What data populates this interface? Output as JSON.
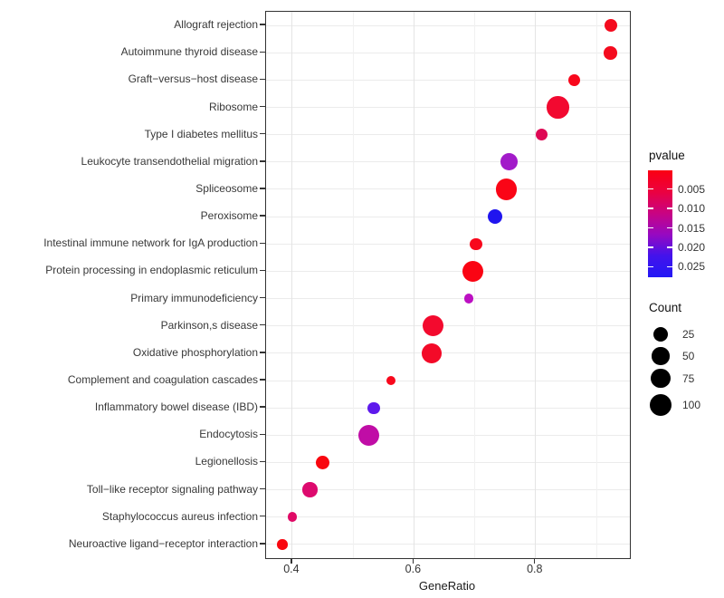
{
  "chart_data": {
    "type": "scatter",
    "variant": "enrichment-dotplot",
    "title": "",
    "xlabel": "GeneRatio",
    "ylabel": "",
    "grid": true,
    "x_axis": {
      "tick_labels": [
        "0.4",
        "0.6",
        "0.8"
      ],
      "tick_values": [
        0.4,
        0.6,
        0.8
      ],
      "minor_gridlines": [
        0.5,
        0.7,
        0.9
      ],
      "xlim": [
        0.357,
        0.955
      ]
    },
    "points": [
      {
        "pathway": "Allograft rejection",
        "gene_ratio": 0.924,
        "count": 17,
        "color": "#F40B1E"
      },
      {
        "pathway": "Autoimmune thyroid disease",
        "gene_ratio": 0.923,
        "count": 17,
        "color": "#F40B1E"
      },
      {
        "pathway": "Graft−versus−host disease",
        "gene_ratio": 0.864,
        "count": 11,
        "color": "#F8081C"
      },
      {
        "pathway": "Ribosome",
        "gene_ratio": 0.837,
        "count": 105,
        "color": "#F20930"
      },
      {
        "pathway": "Type I diabetes mellitus",
        "gene_ratio": 0.81,
        "count": 11,
        "color": "#DE0854"
      },
      {
        "pathway": "Leukocyte transendothelial migration",
        "gene_ratio": 0.756,
        "count": 45,
        "color": "#A21BC9"
      },
      {
        "pathway": "Spliceosome",
        "gene_ratio": 0.752,
        "count": 90,
        "color": "#FA0516"
      },
      {
        "pathway": "Peroxisome",
        "gene_ratio": 0.733,
        "count": 25,
        "color": "#2015EF"
      },
      {
        "pathway": "Intestinal immune network for IgA production",
        "gene_ratio": 0.702,
        "count": 11,
        "color": "#F8081C"
      },
      {
        "pathway": "Protein processing in endoplasmic reticulum",
        "gene_ratio": 0.697,
        "count": 90,
        "color": "#FA0413"
      },
      {
        "pathway": "Primary immunodeficiency",
        "gene_ratio": 0.69,
        "count": 2,
        "color": "#BC10C2"
      },
      {
        "pathway": "Parkinson,s disease",
        "gene_ratio": 0.632,
        "count": 90,
        "color": "#F30A2E"
      },
      {
        "pathway": "Oxidative phosphorylation",
        "gene_ratio": 0.629,
        "count": 75,
        "color": "#F30A28"
      },
      {
        "pathway": "Complement and coagulation cascades",
        "gene_ratio": 0.562,
        "count": 2,
        "color": "#F8081C"
      },
      {
        "pathway": "Inflammatory bowel disease (IBD)",
        "gene_ratio": 0.534,
        "count": 11,
        "color": "#5E19EC"
      },
      {
        "pathway": "Endocytosis",
        "gene_ratio": 0.526,
        "count": 90,
        "color": "#C00DA6"
      },
      {
        "pathway": "Legionellosis",
        "gene_ratio": 0.45,
        "count": 19,
        "color": "#F9070F"
      },
      {
        "pathway": "Toll−like receptor signaling pathway",
        "gene_ratio": 0.429,
        "count": 28,
        "color": "#DD0A6E"
      },
      {
        "pathway": "Staphylococcus aureus infection",
        "gene_ratio": 0.4,
        "count": 3,
        "color": "#E00A66"
      },
      {
        "pathway": "Neuroactive ligand−receptor interaction",
        "gene_ratio": 0.384,
        "count": 5,
        "color": "#F9070F"
      }
    ],
    "legend_pvalue": {
      "title": "pvalue",
      "position": "right",
      "tick_labels": [
        "0.005",
        "0.010",
        "0.015",
        "0.020",
        "0.025"
      ],
      "tick_values": [
        0.005,
        0.01,
        0.015,
        0.02,
        0.025
      ],
      "range": [
        0.0002,
        0.0277
      ],
      "gradient_top_to_bottom": [
        "#FB0012",
        "#EB0140",
        "#C90382",
        "#9709C1",
        "#4313EC",
        "#2318F5"
      ],
      "low_color": "#FB0012",
      "high_color": "#2318F5"
    },
    "legend_count": {
      "title": "Count",
      "position": "right",
      "items": [
        25,
        50,
        75,
        100
      ]
    }
  }
}
